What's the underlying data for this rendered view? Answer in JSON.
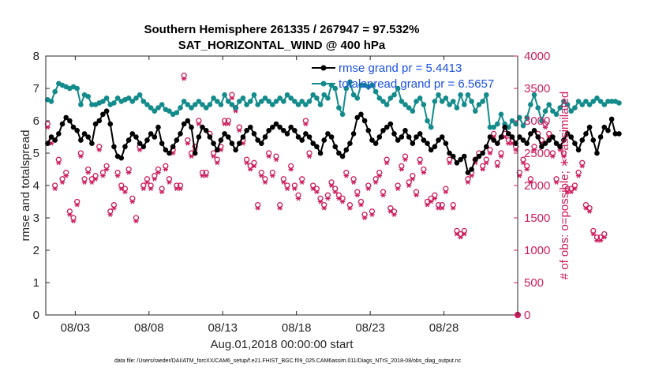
{
  "chart_data": {
    "type": "line",
    "title": "Southern Hemisphere 261335 / 267947 = 97.532%",
    "subtitle": "SAT_HORIZONTAL_WIND @ 400 hPa",
    "xlabel": "Aug.01,2018 00:00:00 start",
    "ylabel_left": "rmse and totalspread",
    "ylabel_right": "# of obs: o=possible; ∗=assimilated",
    "x_range": [
      1.0,
      33.0
    ],
    "ylim_left": [
      0,
      8
    ],
    "ylim_right": [
      0,
      4000
    ],
    "x_ticks": [
      {
        "value": 3,
        "label": "08/03"
      },
      {
        "value": 8,
        "label": "08/08"
      },
      {
        "value": 13,
        "label": "08/13"
      },
      {
        "value": 18,
        "label": "08/18"
      },
      {
        "value": 23,
        "label": "08/23"
      },
      {
        "value": 28,
        "label": "08/28"
      }
    ],
    "y_ticks_left": [
      "0",
      "1",
      "2",
      "3",
      "4",
      "5",
      "6",
      "7",
      "8"
    ],
    "y_ticks_right": [
      "0",
      "500",
      "1000",
      "1500",
      "2000",
      "2500",
      "3000",
      "3500",
      "4000"
    ],
    "colors": {
      "rmse": "#000000",
      "spread": "#138b8b",
      "obs": "#cc1d5d",
      "legend_text": "#1a50e6"
    },
    "legend": {
      "position": "top-right",
      "entries": [
        "rmse grand pr = 5.4413",
        "totalspread grand pr = 6.5657"
      ]
    },
    "footnote": "data file: /Users/raeder/DAI/ATM_forcXX/CAM6_setup/f.e21.FHIST_BGC.f09_025.CAM6assim.011/Diags_NTrS_2018-08/obs_diag_output.nc",
    "series": [
      {
        "name": "rmse grand pr = 5.4413",
        "axis": "left",
        "x_start": 1.125,
        "x_step": 0.25,
        "values": [
          5.3,
          5.5,
          5.4,
          5.6,
          5.9,
          6.1,
          6.0,
          5.8,
          5.7,
          5.4,
          5.6,
          5.5,
          5.3,
          5.9,
          6.0,
          6.2,
          6.3,
          5.9,
          5.2,
          4.9,
          4.85,
          5.2,
          5.4,
          5.6,
          5.5,
          5.3,
          5.2,
          5.4,
          5.6,
          5.5,
          5.8,
          5.3,
          5.1,
          5.0,
          5.2,
          5.4,
          5.6,
          5.9,
          6.0,
          5.8,
          5.0,
          5.5,
          5.8,
          5.7,
          5.5,
          5.3,
          5.1,
          5.4,
          5.6,
          5.5,
          5.3,
          5.1,
          5.3,
          5.5,
          5.7,
          5.8,
          5.6,
          5.4,
          5.3,
          5.5,
          5.7,
          5.8,
          5.9,
          5.8,
          5.7,
          5.6,
          5.8,
          5.7,
          5.5,
          5.4,
          5.6,
          5.5,
          5.3,
          5.2,
          5.0,
          5.4,
          5.6,
          5.5,
          5.2,
          5.0,
          4.9,
          5.1,
          5.3,
          5.6,
          6.1,
          6.2,
          6.0,
          5.7,
          5.4,
          5.3,
          5.5,
          5.7,
          5.8,
          5.9,
          5.6,
          5.4,
          5.5,
          5.7,
          5.5,
          5.3,
          5.5,
          5.6,
          5.4,
          5.3,
          5.1,
          5.2,
          5.4,
          5.5,
          5.3,
          5.0,
          4.9,
          4.7,
          4.8,
          4.9,
          4.4,
          4.5,
          4.8,
          4.9,
          5.0,
          5.2,
          5.5,
          5.4,
          5.3,
          5.5,
          5.8,
          5.6,
          5.5,
          5.3,
          5.5,
          5.4,
          5.3,
          5.6,
          5.7,
          5.5,
          5.2,
          5.3,
          5.4,
          5.5,
          5.3,
          5.2,
          5.4,
          5.6,
          5.5,
          5.3,
          5.1,
          5.4,
          5.6,
          5.8,
          5.4,
          5.0,
          5.5,
          5.8,
          5.7,
          6.05,
          5.6,
          5.6
        ]
      },
      {
        "name": "totalspread grand pr = 6.5657",
        "axis": "left",
        "x_start": 1.125,
        "x_step": 0.25,
        "values": [
          6.65,
          6.6,
          6.9,
          7.15,
          7.1,
          7.05,
          7.0,
          7.05,
          7.0,
          6.5,
          6.8,
          6.75,
          6.5,
          6.5,
          6.55,
          6.6,
          6.7,
          6.5,
          6.55,
          6.7,
          6.6,
          6.65,
          6.7,
          6.6,
          6.7,
          6.8,
          6.6,
          6.5,
          6.4,
          6.3,
          6.4,
          6.5,
          6.35,
          6.3,
          6.2,
          6.25,
          6.4,
          6.6,
          6.5,
          6.4,
          6.5,
          6.6,
          6.5,
          6.4,
          6.5,
          6.7,
          6.6,
          6.5,
          6.8,
          6.6,
          6.5,
          6.4,
          6.6,
          6.7,
          6.5,
          6.6,
          6.8,
          6.5,
          6.6,
          6.7,
          6.6,
          6.5,
          6.6,
          6.7,
          6.6,
          6.8,
          6.7,
          6.6,
          6.5,
          6.6,
          6.5,
          6.6,
          6.8,
          6.7,
          6.5,
          6.8,
          6.7,
          7.1,
          7.0,
          6.4,
          6.2,
          7.0,
          7.2,
          6.8,
          6.7,
          7.1,
          7.1,
          7.05,
          7.1,
          6.9,
          6.7,
          6.6,
          6.5,
          6.7,
          6.8,
          7.0,
          6.6,
          6.5,
          6.4,
          6.3,
          6.6,
          6.7,
          6.5,
          6.0,
          5.8,
          6.6,
          6.8,
          6.6,
          6.7,
          6.5,
          6.6,
          6.4,
          6.8,
          6.5,
          6.8,
          6.6,
          6.3,
          6.5,
          6.6,
          6.8,
          5.8,
          5.8,
          5.9,
          6.2,
          5.9,
          5.8,
          6.0,
          5.9,
          6.1,
          5.85,
          6.1,
          6.5,
          6.8,
          6.4,
          6.0,
          6.3,
          6.5,
          6.3,
          6.2,
          6.4,
          6.6,
          6.5,
          6.3,
          6.4,
          6.6,
          6.5,
          6.6,
          6.5,
          6.6,
          6.7,
          6.6,
          6.5,
          6.6,
          6.6,
          6.6,
          6.55
        ]
      },
      {
        "name": "possible",
        "axis": "right",
        "marker": "o",
        "x_start": 1.125,
        "x_step": 0.25,
        "values": [
          2950,
          2700,
          2000,
          2400,
          2100,
          2200,
          1600,
          1500,
          1750,
          2500,
          2100,
          2250,
          2100,
          2150,
          2600,
          2200,
          2300,
          1600,
          1700,
          2200,
          2000,
          1950,
          2250,
          1800,
          1500,
          2600,
          2000,
          2100,
          2000,
          2150,
          2250,
          1950,
          2300,
          2100,
          2550,
          2000,
          2000,
          3700,
          2700,
          2500,
          2600,
          3000,
          2200,
          2200,
          2800,
          2500,
          2400,
          2600,
          3000,
          3000,
          3400,
          3200,
          2900,
          2700,
          2400,
          2300,
          2350,
          1700,
          2200,
          2100,
          2500,
          2200,
          2450,
          1700,
          2100,
          2000,
          2300,
          2000,
          1850,
          2100,
          3000,
          2500,
          2000,
          1950,
          1800,
          1700,
          1850,
          2050,
          1950,
          1850,
          1800,
          2200,
          1700,
          2100,
          1900,
          1750,
          1550,
          2000,
          1600,
          2100,
          2200,
          1900,
          2400,
          1650,
          1600,
          2000,
          2300,
          2450,
          2050,
          2150,
          1900,
          2400,
          2250,
          1750,
          1800,
          1850,
          1700,
          1700,
          1950,
          2400,
          1700,
          1300,
          1250,
          1300,
          2100,
          2200,
          2400,
          2500,
          2300,
          2400,
          2550,
          2800,
          2350,
          2500,
          2800,
          2700,
          2700,
          2600,
          2200,
          2400,
          2300,
          2100,
          2600,
          2800,
          2700,
          2950,
          2800,
          2500,
          2100,
          2600,
          2500,
          1950,
          1950,
          2000,
          2200,
          2350,
          1700,
          1650,
          1300,
          1200,
          1200,
          1250
        ]
      },
      {
        "name": "assimilated",
        "axis": "right",
        "marker": "*",
        "x_start": 1.125,
        "x_step": 0.25,
        "values": [
          2900,
          2650,
          1950,
          2350,
          2050,
          2150,
          1550,
          1450,
          1700,
          2450,
          2050,
          2200,
          2050,
          2100,
          2550,
          2150,
          2250,
          1550,
          1650,
          2150,
          1950,
          1900,
          2200,
          1750,
          1450,
          2550,
          1950,
          2050,
          1950,
          2100,
          2200,
          1900,
          2250,
          2050,
          2500,
          1950,
          1950,
          3650,
          2650,
          2450,
          2550,
          2950,
          2150,
          2150,
          2750,
          2450,
          2350,
          2550,
          2950,
          2950,
          3350,
          3150,
          2850,
          2650,
          2350,
          2250,
          2300,
          1650,
          2150,
          2050,
          2450,
          2150,
          2400,
          1650,
          2050,
          1950,
          2250,
          1950,
          1800,
          2050,
          2950,
          2450,
          1950,
          1900,
          1750,
          1650,
          1800,
          2000,
          1900,
          1800,
          1750,
          2150,
          1650,
          2050,
          1850,
          1700,
          1500,
          1950,
          1550,
          2050,
          2150,
          1850,
          2350,
          1600,
          1550,
          1950,
          2250,
          2400,
          2000,
          2100,
          1850,
          2350,
          2200,
          1700,
          1750,
          1800,
          1650,
          1650,
          1900,
          2350,
          1650,
          1250,
          1200,
          1250,
          2050,
          2150,
          2350,
          2450,
          2250,
          2350,
          2500,
          2750,
          2300,
          2450,
          2750,
          2650,
          2650,
          2550,
          2150,
          2350,
          2250,
          2050,
          2550,
          2750,
          2650,
          2900,
          2750,
          2450,
          2050,
          2550,
          2450,
          1900,
          1900,
          1950,
          2150,
          2300,
          1650,
          1600,
          1250,
          1150,
          1150,
          1200
        ]
      }
    ],
    "extra_points": [
      {
        "series": "possible",
        "x": 33.0,
        "y": 0
      },
      {
        "series": "assimilated",
        "x": 33.0,
        "y": 0
      }
    ]
  }
}
